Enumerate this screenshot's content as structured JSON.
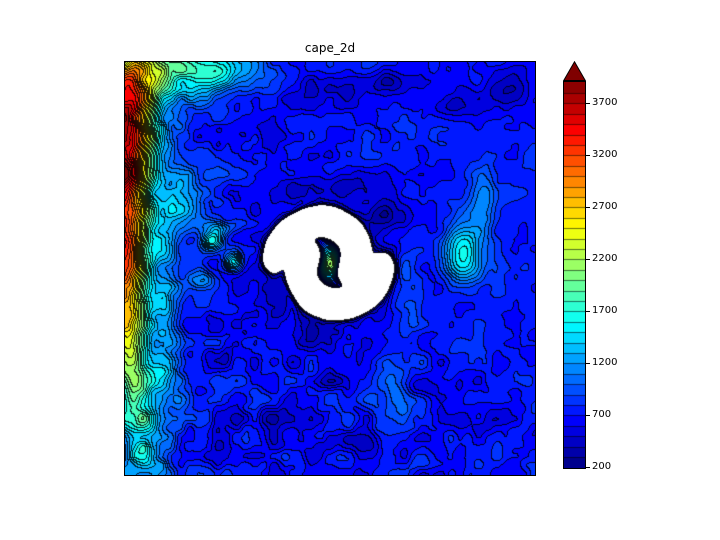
{
  "figure": {
    "background": "#ffffff"
  },
  "chart_data": {
    "type": "contour",
    "title": "cape_2d",
    "colormap": "jet",
    "vmin": 200,
    "vmax": 3900,
    "level_step": 100,
    "extend": "max",
    "under_color": "#ffffff",
    "over_color": "#7f0000",
    "contour_line_color": "#000000",
    "colorbar_ticks": [
      200,
      700,
      1200,
      1700,
      2200,
      2700,
      3200,
      3700
    ],
    "field": {
      "base": 750,
      "clamp_max": 4100,
      "features": [
        {
          "x": 0.16,
          "y": 0.02,
          "sx": 0.1,
          "sy": 0.045,
          "amp": 1100
        },
        {
          "x": 0.01,
          "y": 0.08,
          "sx": 0.055,
          "sy": 0.09,
          "amp": 2000
        },
        {
          "x": -0.01,
          "y": 0.27,
          "sx": 0.05,
          "sy": 0.11,
          "amp": 2800
        },
        {
          "x": -0.01,
          "y": 0.47,
          "sx": 0.045,
          "sy": 0.08,
          "amp": 2100
        },
        {
          "x": 0.0,
          "y": 0.63,
          "sx": 0.04,
          "sy": 0.08,
          "amp": 1500
        },
        {
          "x": 0.02,
          "y": 0.76,
          "sx": 0.04,
          "sy": 0.08,
          "amp": 1000
        },
        {
          "x": 0.05,
          "y": 0.92,
          "sx": 0.05,
          "sy": 0.08,
          "amp": 750
        },
        {
          "x": 0.105,
          "y": 0.6,
          "sx": 0.022,
          "sy": 0.14,
          "amp": 500
        },
        {
          "x": 0.14,
          "y": 0.33,
          "sx": 0.03,
          "sy": 0.05,
          "amp": 650
        },
        {
          "x": 0.215,
          "y": 0.435,
          "sx": 0.02,
          "sy": 0.02,
          "amp": 950
        },
        {
          "x": 0.265,
          "y": 0.485,
          "sx": 0.016,
          "sy": 0.016,
          "amp": 850
        },
        {
          "x": 0.185,
          "y": 0.53,
          "sx": 0.02,
          "sy": 0.018,
          "amp": 600
        },
        {
          "x": 0.24,
          "y": 0.4,
          "sx": 0.05,
          "sy": 0.012,
          "amp": 330
        },
        {
          "x": 0.825,
          "y": 0.465,
          "sx": 0.035,
          "sy": 0.05,
          "amp": 900
        },
        {
          "x": 0.875,
          "y": 0.33,
          "sx": 0.025,
          "sy": 0.07,
          "amp": 350
        },
        {
          "x": 0.498,
          "y": 0.487,
          "sx": 0.03,
          "sy": 0.03,
          "amp": 1600
        },
        {
          "x": 0.512,
          "y": 0.497,
          "sx": 0.012,
          "sy": 0.012,
          "amp": 450
        },
        {
          "x": 0.52,
          "y": 0.5,
          "sx": 0.14,
          "sy": 0.14,
          "amp": -270
        },
        {
          "x": 0.395,
          "y": 0.435,
          "sx": 0.03,
          "sy": 0.03,
          "amp": -280
        },
        {
          "x": 0.585,
          "y": 0.565,
          "sx": 0.035,
          "sy": 0.03,
          "amp": -300
        },
        {
          "x": 0.455,
          "y": 0.645,
          "sx": 0.03,
          "sy": 0.025,
          "amp": -260
        },
        {
          "x": 0.345,
          "y": 0.555,
          "sx": 0.04,
          "sy": 0.03,
          "amp": -220
        },
        {
          "x": 0.64,
          "y": 0.375,
          "sx": 0.05,
          "sy": 0.022,
          "amp": -240
        },
        {
          "x": 0.52,
          "y": 0.3,
          "sx": 0.09,
          "sy": 0.025,
          "amp": -200
        },
        {
          "x": 0.47,
          "y": 0.085,
          "sx": 0.13,
          "sy": 0.03,
          "amp": -260
        },
        {
          "x": 0.3,
          "y": 0.17,
          "sx": 0.05,
          "sy": 0.025,
          "amp": -230
        },
        {
          "x": 0.93,
          "y": 0.065,
          "sx": 0.05,
          "sy": 0.035,
          "amp": -320
        },
        {
          "x": 0.795,
          "y": 0.105,
          "sx": 0.04,
          "sy": 0.025,
          "amp": -260
        },
        {
          "x": 0.66,
          "y": 0.05,
          "sx": 0.05,
          "sy": 0.02,
          "amp": -220
        },
        {
          "x": 0.33,
          "y": 0.865,
          "sx": 0.1,
          "sy": 0.02,
          "amp": -240
        },
        {
          "x": 0.55,
          "y": 0.925,
          "sx": 0.12,
          "sy": 0.022,
          "amp": -210
        },
        {
          "x": 0.74,
          "y": 0.79,
          "sx": 0.06,
          "sy": 0.018,
          "amp": -200
        },
        {
          "x": 0.5,
          "y": 0.775,
          "sx": 0.045,
          "sy": 0.014,
          "amp": -190
        },
        {
          "x": 0.86,
          "y": 0.885,
          "sx": 0.07,
          "sy": 0.028,
          "amp": -170
        },
        {
          "x": 0.24,
          "y": 0.72,
          "sx": 0.05,
          "sy": 0.02,
          "amp": -200
        },
        {
          "x": 0.655,
          "y": 0.79,
          "sx": 0.035,
          "sy": 0.06,
          "amp": 420
        },
        {
          "x": 0.69,
          "y": 0.55,
          "sx": 0.03,
          "sy": 0.09,
          "amp": 330
        }
      ],
      "spiral": {
        "cx": 0.498,
        "cy": 0.487,
        "arms": 2,
        "phase": 2.5,
        "theta_start": 0.2,
        "theta_end": 3.8,
        "steps": 44,
        "r0": 0.046,
        "k": 0.0235,
        "sigma": 0.016,
        "amp": -1700
      },
      "noise": {
        "seed1": 101,
        "seed2": 202,
        "grid1": 22,
        "grid2": 44,
        "octave2": 0.5,
        "base_amp": 70,
        "left_amp": 160,
        "left_decay": 2.2,
        "bottom_amp": 60,
        "bottom_start": 0.55
      }
    }
  }
}
